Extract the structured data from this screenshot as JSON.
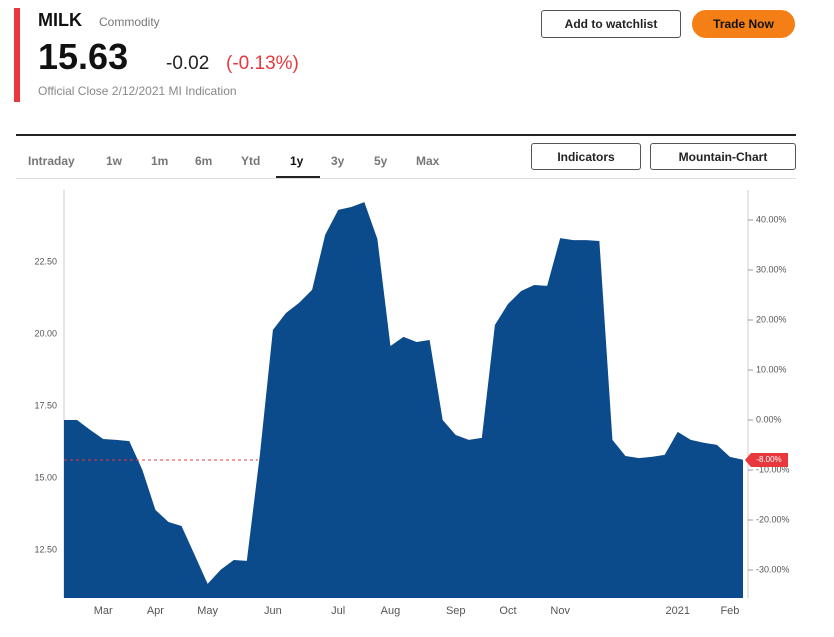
{
  "header": {
    "symbol": "MILK",
    "asset_type": "Commodity",
    "price": "15.63",
    "change": "-0.02",
    "change_percent": "(-0.13%)",
    "note": "Official Close 2/12/2021 MI Indication"
  },
  "buttons": {
    "watchlist": "Add to watchlist",
    "trade": "Trade Now",
    "indicators": "Indicators",
    "chart_style": "Mountain-Chart"
  },
  "tabs": {
    "items": [
      "Intraday",
      "1w",
      "1m",
      "6m",
      "Ytd",
      "1y",
      "3y",
      "5y",
      "Max"
    ],
    "active": 5
  },
  "chart_data": {
    "type": "area",
    "color": "#0b4a8b",
    "categories": [
      null,
      null,
      null,
      "Mar",
      null,
      null,
      null,
      "Apr",
      null,
      null,
      null,
      "May",
      null,
      null,
      null,
      null,
      "Jun",
      null,
      null,
      null,
      null,
      "Jul",
      null,
      null,
      null,
      "Aug",
      null,
      null,
      null,
      null,
      "Sep",
      null,
      null,
      null,
      "Oct",
      null,
      null,
      null,
      "Nov",
      null,
      null,
      null,
      null,
      null,
      null,
      null,
      null,
      "2021",
      null,
      null,
      null,
      "Feb",
      null
    ],
    "values": [
      17.01,
      17.01,
      16.67,
      16.35,
      16.32,
      16.28,
      15.28,
      13.89,
      13.47,
      13.33,
      12.33,
      11.32,
      11.81,
      12.15,
      12.12,
      15.8,
      20.14,
      20.73,
      21.08,
      21.53,
      23.44,
      24.31,
      24.41,
      24.58,
      23.3,
      19.58,
      19.9,
      19.72,
      19.79,
      17.01,
      16.49,
      16.32,
      16.39,
      20.31,
      21.04,
      21.49,
      21.7,
      21.67,
      23.33,
      23.26,
      23.26,
      23.23,
      16.32,
      15.76,
      15.69,
      15.73,
      15.8,
      16.6,
      16.32,
      16.22,
      16.15,
      15.73,
      15.63
    ],
    "ylim": [
      10.83,
      25.0
    ],
    "yticks": [
      {
        "value": 12.5,
        "label": "12.50"
      },
      {
        "value": 15,
        "label": "15.00"
      },
      {
        "value": 17.5,
        "label": "17.50"
      },
      {
        "value": 20,
        "label": "20.00"
      },
      {
        "value": 22.5,
        "label": "22.50"
      }
    ],
    "y2lim": [
      -35.6,
      46
    ],
    "y2ticks": [
      {
        "value": 40,
        "label": "40.00%"
      },
      {
        "value": 30,
        "label": "30.00%"
      },
      {
        "value": 20,
        "label": "20.00%"
      },
      {
        "value": 10,
        "label": "10.00%"
      },
      {
        "value": 0,
        "label": "0.00%"
      },
      {
        "value": -10,
        "label": "-10.00%"
      },
      {
        "value": -20,
        "label": "-20.00%"
      },
      {
        "value": -30,
        "label": "-30.00%"
      }
    ],
    "reference": {
      "value": -8,
      "label": "-8.00%",
      "color": "#e8383d"
    }
  }
}
